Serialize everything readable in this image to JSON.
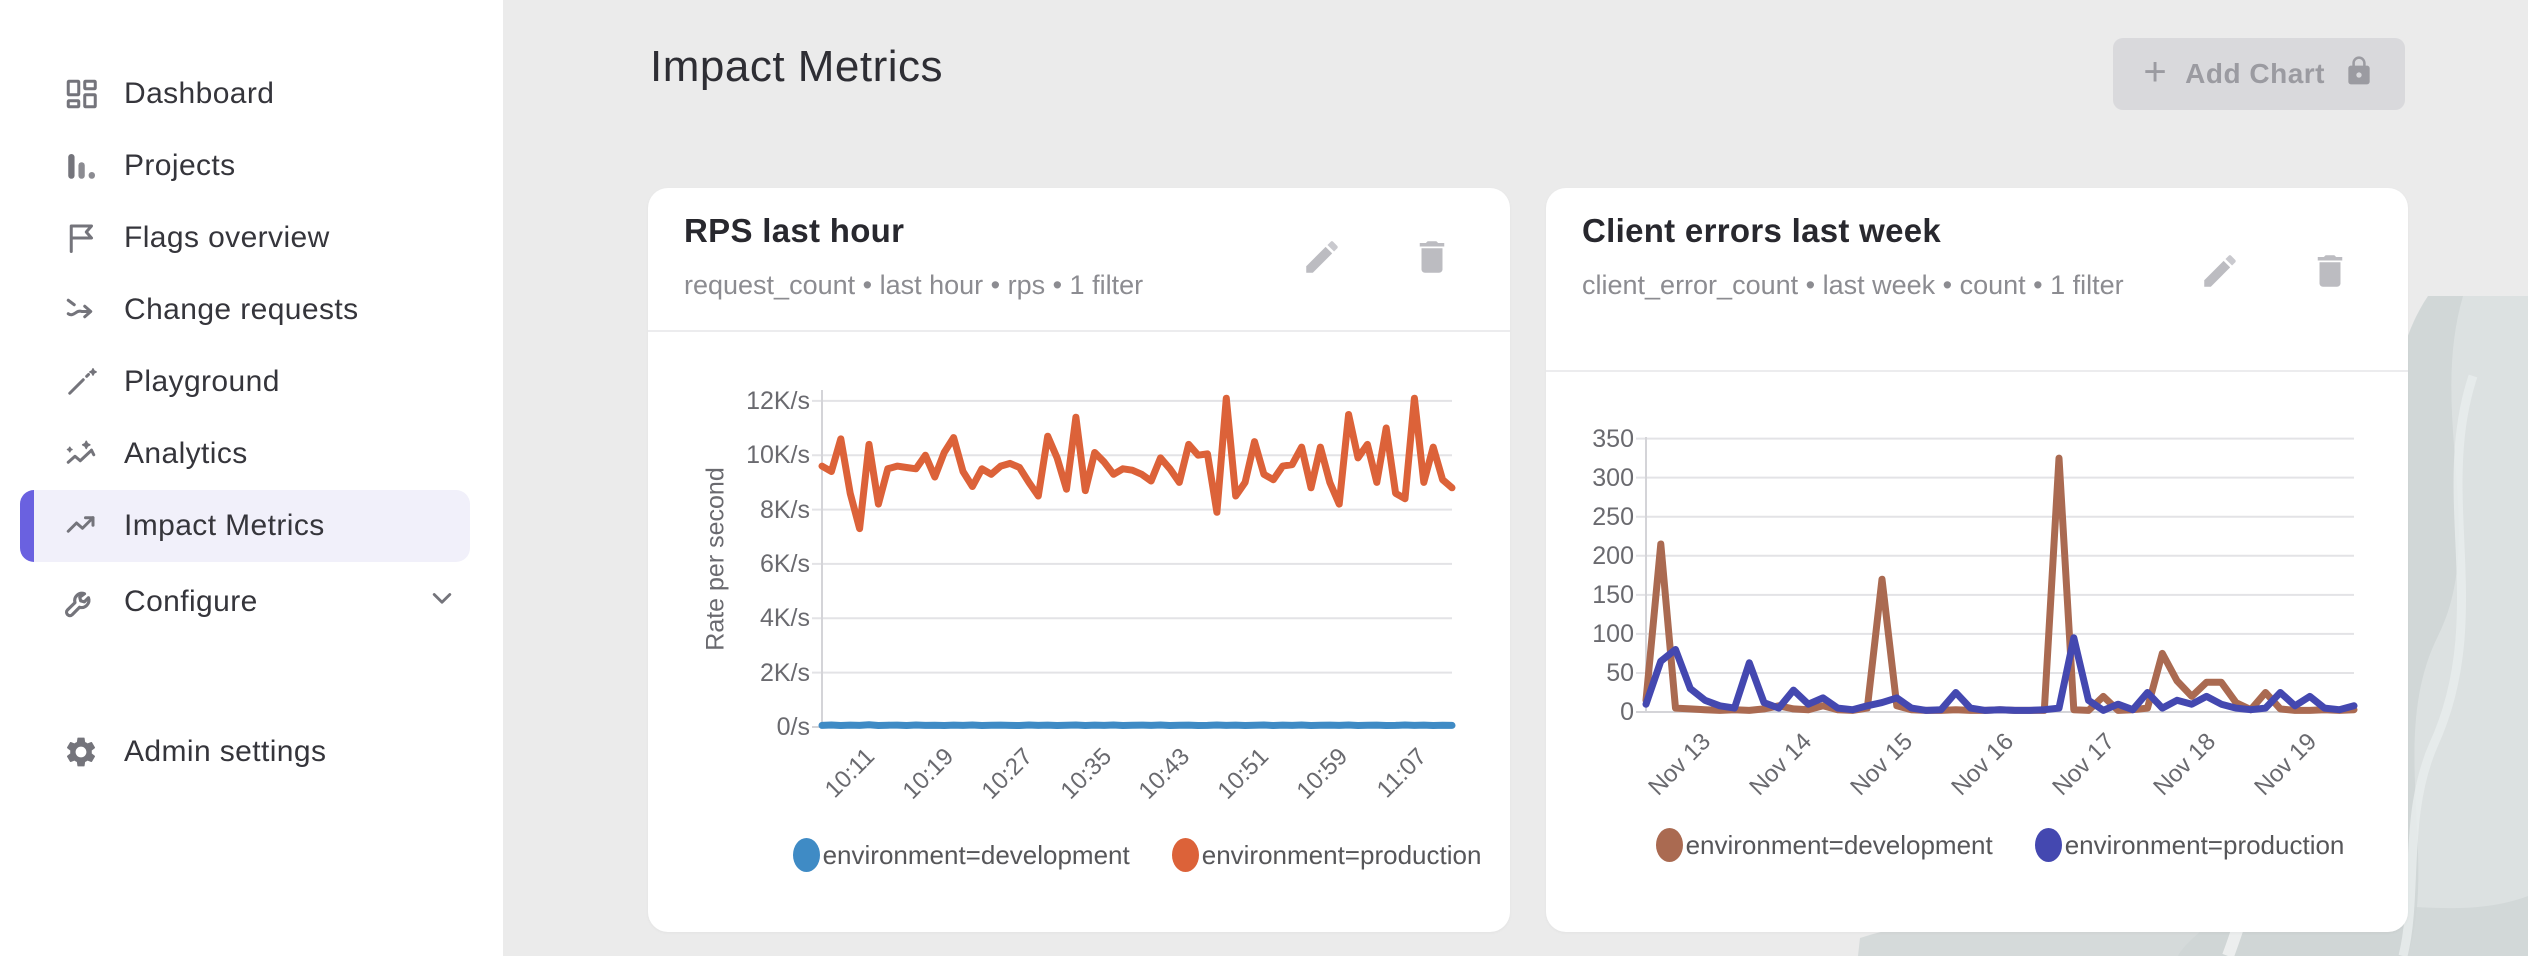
{
  "colors": {
    "accent_purple": "#6a61e0",
    "selected_bg": "#f1f0fa",
    "sidebar_bg": "#ffffff",
    "main_bg": "#ebebeb",
    "card_bg": "#ffffff",
    "dev_blue": "#3f8bc5",
    "prod_orange": "#dc6239",
    "dev_brown": "#aa6a51",
    "prod_indigo": "#4448b0",
    "disabled_btn_bg": "#d9d9dc",
    "disabled_btn_text": "#9b9ba1"
  },
  "sidebar": {
    "items": [
      {
        "label": "Dashboard",
        "icon": "dashboard-icon"
      },
      {
        "label": "Projects",
        "icon": "projects-icon"
      },
      {
        "label": "Flags overview",
        "icon": "flag-icon"
      },
      {
        "label": "Change requests",
        "icon": "change-requests-icon"
      },
      {
        "label": "Playground",
        "icon": "wand-icon"
      },
      {
        "label": "Analytics",
        "icon": "analytics-icon"
      },
      {
        "label": "Impact Metrics",
        "icon": "trending-up-icon",
        "selected": true
      },
      {
        "label": "Configure",
        "icon": "wrench-icon",
        "has_submenu": true
      }
    ],
    "footer_item": {
      "label": "Admin settings",
      "icon": "gear-icon"
    }
  },
  "header": {
    "title": "Impact Metrics"
  },
  "toolbar": {
    "add_chart_label": "Add Chart",
    "plus_glyph": "+"
  },
  "charts": [
    {
      "title": "RPS last hour",
      "subtitle": "request_count • last hour • rps • 1 filter",
      "chart_data": {
        "type": "line",
        "title": "RPS last hour",
        "xlabel": "",
        "ylabel": "Rate per second",
        "ylim": [
          0,
          12400
        ],
        "grid": "horizontal",
        "legend_position": "bottom",
        "y_ticks": [
          {
            "value": 0,
            "label": "0/s"
          },
          {
            "value": 2000,
            "label": "2K/s"
          },
          {
            "value": 4000,
            "label": "4K/s"
          },
          {
            "value": 6000,
            "label": "6K/s"
          },
          {
            "value": 8000,
            "label": "8K/s"
          },
          {
            "value": 10000,
            "label": "10K/s"
          },
          {
            "value": 12000,
            "label": "12K/s"
          }
        ],
        "x_tick_labels": [
          "10:11",
          "10:19",
          "10:27",
          "10:35",
          "10:43",
          "10:51",
          "10:59",
          "11:07"
        ],
        "series": [
          {
            "name": "environment=development",
            "color": "#3f8bc5",
            "values": [
              60,
              75,
              55,
              70,
              60,
              80,
              55,
              65,
              70,
              55,
              75,
              60,
              65,
              55,
              70,
              60,
              75,
              55,
              65,
              70,
              60,
              55,
              75,
              60,
              70,
              55,
              65,
              75,
              55,
              70,
              60,
              75,
              55,
              65,
              70,
              60,
              75,
              55,
              65,
              70,
              55,
              60,
              75,
              60,
              70,
              55,
              65,
              75,
              55,
              70,
              60,
              75,
              55,
              65,
              70,
              60,
              75,
              55,
              65,
              70,
              55,
              60,
              75,
              60,
              70,
              55,
              65,
              60
            ]
          },
          {
            "name": "environment=production",
            "color": "#dc6239",
            "values": [
              9600,
              9400,
              10600,
              8600,
              7300,
              10400,
              8200,
              9500,
              9600,
              9550,
              9500,
              10000,
              9200,
              10100,
              10650,
              9400,
              8850,
              9500,
              9300,
              9600,
              9700,
              9550,
              9000,
              8500,
              10700,
              9900,
              8750,
              11400,
              8700,
              10100,
              9750,
              9300,
              9500,
              9450,
              9300,
              9050,
              9900,
              9500,
              9000,
              10400,
              10000,
              10050,
              7900,
              12100,
              8500,
              9000,
              10500,
              9300,
              9100,
              9600,
              9650,
              10300,
              8800,
              10300,
              9000,
              8200,
              11500,
              9900,
              10400,
              9000,
              11000,
              8600,
              8400,
              12100,
              9000,
              10300,
              9100,
              8800
            ]
          }
        ]
      }
    },
    {
      "title": "Client errors last week",
      "subtitle": "client_error_count • last week • count • 1 filter",
      "chart_data": {
        "type": "line",
        "title": "Client errors last week",
        "xlabel": "",
        "ylabel": "",
        "ylim": [
          0,
          352
        ],
        "grid": "horizontal",
        "legend_position": "bottom",
        "y_ticks": [
          {
            "value": 0,
            "label": "0"
          },
          {
            "value": 50,
            "label": "50"
          },
          {
            "value": 100,
            "label": "100"
          },
          {
            "value": 150,
            "label": "150"
          },
          {
            "value": 200,
            "label": "200"
          },
          {
            "value": 250,
            "label": "250"
          },
          {
            "value": 300,
            "label": "300"
          },
          {
            "value": 350,
            "label": "350"
          }
        ],
        "x_tick_labels": [
          "Nov 13",
          "Nov 14",
          "Nov 15",
          "Nov 16",
          "Nov 17",
          "Nov 18",
          "Nov 19"
        ],
        "series": [
          {
            "name": "environment=development",
            "color": "#aa6a51",
            "values": [
              15,
              215,
              5,
              4,
              3,
              2,
              3,
              2,
              4,
              8,
              4,
              3,
              8,
              3,
              2,
              5,
              170,
              8,
              3,
              2,
              2,
              3,
              2,
              2,
              3,
              2,
              2,
              2,
              325,
              3,
              2,
              20,
              2,
              3,
              5,
              75,
              40,
              20,
              38,
              38,
              12,
              3,
              25,
              4,
              2,
              2,
              3,
              2,
              3
            ]
          },
          {
            "name": "environment=production",
            "color": "#4448b0",
            "values": [
              10,
              65,
              80,
              30,
              15,
              8,
              5,
              63,
              12,
              5,
              28,
              10,
              18,
              5,
              3,
              8,
              12,
              18,
              5,
              2,
              3,
              25,
              5,
              2,
              3,
              2,
              2,
              3,
              5,
              95,
              15,
              2,
              10,
              3,
              25,
              5,
              15,
              10,
              20,
              10,
              5,
              3,
              5,
              25,
              8,
              20,
              5,
              3,
              8
            ]
          }
        ]
      }
    }
  ]
}
